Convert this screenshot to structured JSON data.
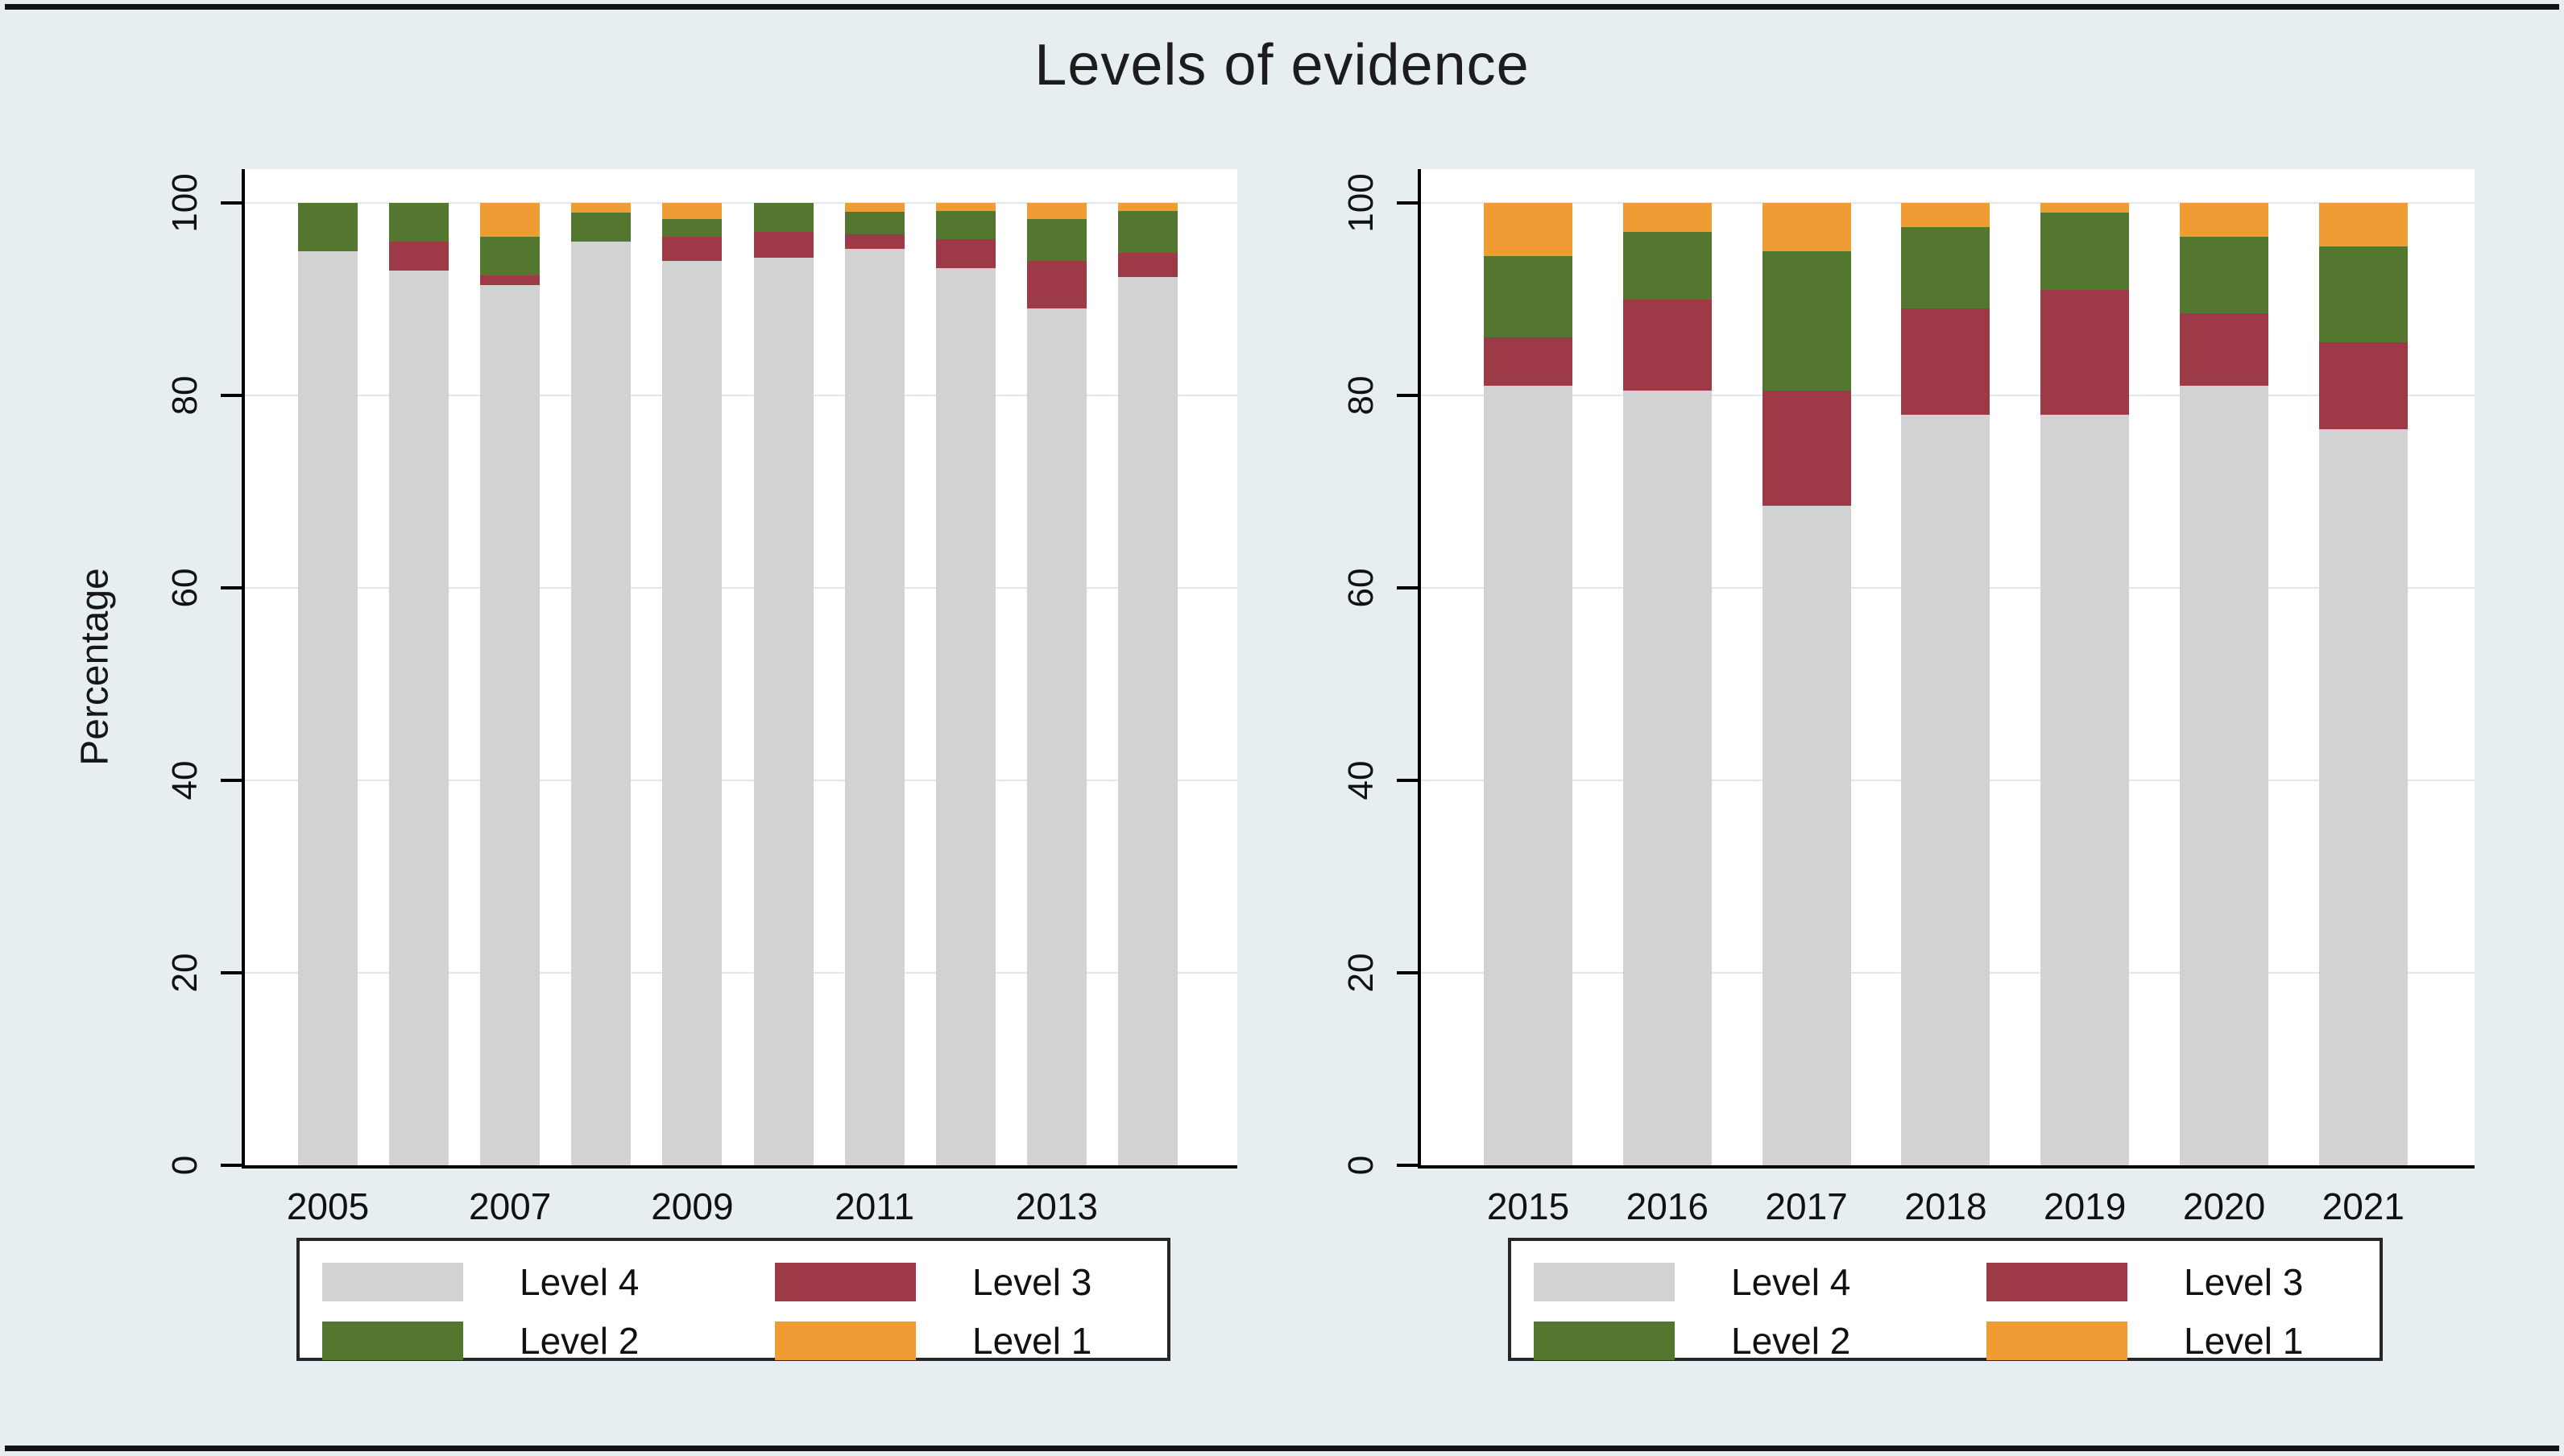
{
  "title": "Levels of evidence",
  "colors": {
    "background": "#e7eef1",
    "plot_background": "#ffffff",
    "gridline": "#dfe9ed",
    "axis": "#000000",
    "level4": "#d2d2d2",
    "level3": "#9e3a47",
    "level2": "#53772e",
    "level1": "#ee9c33"
  },
  "chart_data": [
    {
      "type": "bar",
      "stacked": true,
      "panel": "left",
      "title": "",
      "ylabel": "Percentage",
      "ylim": [
        0,
        100
      ],
      "yticks": [
        0,
        20,
        40,
        60,
        80,
        100
      ],
      "grid": true,
      "legend_position": "below",
      "categories": [
        "2005",
        "2006",
        "2007",
        "2008",
        "2009",
        "2010",
        "2011",
        "2012",
        "2013",
        "2014"
      ],
      "x_tick_labels": [
        "2005",
        "2007",
        "2009",
        "2011",
        "2013"
      ],
      "labeled_category_indexes": [
        0,
        2,
        4,
        6,
        8
      ],
      "series": [
        {
          "name": "Level 4",
          "color_key": "level4",
          "values": [
            95,
            93,
            91.5,
            96,
            94,
            94.3,
            95.2,
            93.2,
            89,
            92.3
          ]
        },
        {
          "name": "Level 3",
          "color_key": "level3",
          "values": [
            0,
            3,
            1,
            0,
            2.5,
            2.7,
            1.5,
            3,
            5,
            2.5
          ]
        },
        {
          "name": "Level 2",
          "color_key": "level2",
          "values": [
            5,
            4,
            4,
            3,
            1.8,
            3,
            2.4,
            3,
            4.3,
            4.4
          ]
        },
        {
          "name": "Level 1",
          "color_key": "level1",
          "values": [
            0,
            0,
            3.5,
            1,
            1.7,
            0,
            0.9,
            0.8,
            1.7,
            0.8
          ]
        }
      ],
      "legend": [
        "Level 4",
        "Level 3",
        "Level 2",
        "Level 1"
      ]
    },
    {
      "type": "bar",
      "stacked": true,
      "panel": "right",
      "title": "",
      "ylabel": "",
      "ylim": [
        0,
        100
      ],
      "yticks": [
        0,
        20,
        40,
        60,
        80,
        100
      ],
      "grid": true,
      "legend_position": "below",
      "categories": [
        "2015",
        "2016",
        "2017",
        "2018",
        "2019",
        "2020",
        "2021"
      ],
      "x_tick_labels": [
        "2015",
        "2016",
        "2017",
        "2018",
        "2019",
        "2020",
        "2021"
      ],
      "labeled_category_indexes": [
        0,
        1,
        2,
        3,
        4,
        5,
        6
      ],
      "series": [
        {
          "name": "Level 4",
          "color_key": "level4",
          "values": [
            81,
            80.5,
            68.5,
            78,
            78,
            81,
            76.5
          ]
        },
        {
          "name": "Level 3",
          "color_key": "level3",
          "values": [
            5,
            9.5,
            12,
            11,
            13,
            7.5,
            9
          ]
        },
        {
          "name": "Level 2",
          "color_key": "level2",
          "values": [
            8.5,
            7,
            14.5,
            8.5,
            8,
            8,
            10
          ]
        },
        {
          "name": "Level 1",
          "color_key": "level1",
          "values": [
            5.5,
            3,
            5,
            2.5,
            1,
            3.5,
            4.5
          ]
        }
      ],
      "legend": [
        "Level 4",
        "Level 3",
        "Level 2",
        "Level 1"
      ]
    }
  ]
}
